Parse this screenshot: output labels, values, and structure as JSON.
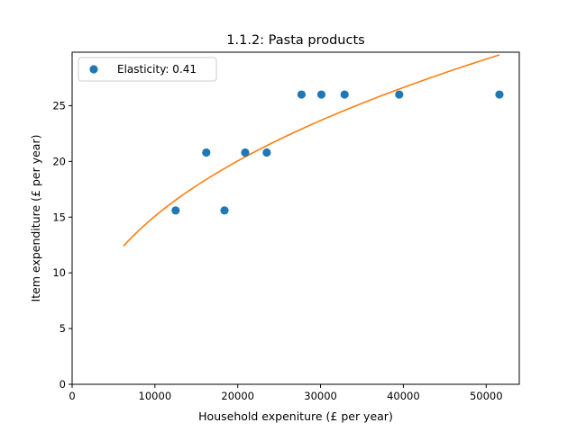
{
  "chart_data": {
    "type": "scatter",
    "title": "1.1.2: Pasta products",
    "xlabel": "Household expeniture (£ per year)",
    "ylabel": "Item expenditure (£ per year)",
    "xlim": [
      0,
      54000
    ],
    "ylim": [
      0,
      29.8
    ],
    "xticks": [
      0,
      10000,
      20000,
      30000,
      40000,
      50000
    ],
    "yticks": [
      0,
      5,
      10,
      15,
      20,
      25
    ],
    "grid": false,
    "legend_position": "upper-left",
    "series": [
      {
        "name": "Elasticity: 0.41",
        "kind": "scatter",
        "color": "#1f77b4",
        "x": [
          12500,
          16200,
          18400,
          20900,
          23500,
          27700,
          30100,
          32900,
          39500,
          51600
        ],
        "y": [
          15.6,
          20.8,
          15.6,
          20.8,
          20.8,
          26.0,
          26.0,
          26.0,
          26.0,
          26.0
        ]
      },
      {
        "kind": "line",
        "color": "#ff7f0e",
        "fit": "power",
        "x_range": [
          6200,
          51600
        ],
        "y_range": [
          12.4,
          29.4
        ],
        "exponent": 0.41
      }
    ]
  }
}
